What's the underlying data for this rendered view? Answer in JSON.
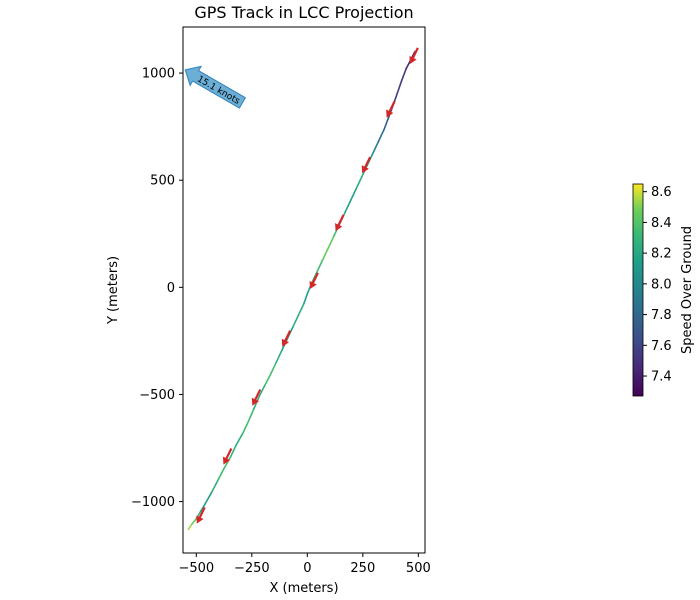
{
  "chart_data": {
    "type": "line",
    "title": "GPS Track in LCC Projection",
    "xlabel": "X (meters)",
    "ylabel": "Y (meters)",
    "xlim": [
      -560,
      530
    ],
    "ylim": [
      -1240,
      1215
    ],
    "xticks": [
      -500,
      -250,
      0,
      250,
      500
    ],
    "yticks": [
      -1000,
      -500,
      0,
      500,
      1000
    ],
    "grid": false,
    "track": {
      "x": [
        -536,
        -520,
        -500,
        -480,
        -460,
        -430,
        -400,
        -375,
        -345,
        -320,
        -290,
        -265,
        -240,
        -215,
        -190,
        -165,
        -140,
        -115,
        -90,
        -65,
        -40,
        -15,
        0,
        20,
        45,
        70,
        95,
        120,
        145,
        170,
        195,
        220,
        245,
        270,
        295,
        320,
        345,
        365,
        385,
        405,
        425,
        445,
        465,
        485
      ],
      "y": [
        -1130,
        -1105,
        -1080,
        -1045,
        -1010,
        -955,
        -895,
        -845,
        -790,
        -735,
        -680,
        -625,
        -565,
        -505,
        -455,
        -405,
        -350,
        -295,
        -240,
        -185,
        -130,
        -75,
        -30,
        20,
        75,
        130,
        185,
        240,
        295,
        350,
        405,
        460,
        515,
        570,
        625,
        680,
        735,
        790,
        845,
        905,
        965,
        1020,
        1060,
        1100
      ],
      "speed": [
        8.6,
        8.5,
        8.4,
        8.2,
        8.1,
        8.2,
        8.3,
        8.4,
        8.3,
        8.2,
        8.3,
        8.4,
        8.3,
        8.2,
        8.3,
        8.4,
        8.3,
        8.2,
        8.1,
        8.2,
        8.3,
        8.2,
        8.1,
        8.2,
        8.3,
        8.4,
        8.5,
        8.4,
        8.3,
        8.2,
        8.1,
        8.2,
        8.3,
        8.2,
        8.0,
        7.9,
        7.8,
        7.7,
        7.6,
        7.5,
        7.6,
        7.5,
        7.4,
        7.3
      ]
    },
    "arrows": {
      "x": [
        -480,
        -360,
        -230,
        -95,
        30,
        145,
        265,
        375,
        480
      ],
      "y": [
        -1065,
        -790,
        -515,
        -240,
        30,
        300,
        570,
        830,
        1080
      ],
      "direction": "down-left"
    },
    "wind_annotation": {
      "label": "15.1 knots",
      "x": -550,
      "y": 1015
    },
    "colorbar": {
      "label": "Speed Over Ground",
      "min": 7.27,
      "max": 8.65,
      "ticks": [
        7.4,
        7.6,
        7.8,
        8.0,
        8.2,
        8.4,
        8.6
      ],
      "colormap": "viridis"
    },
    "colors": {
      "arrow": "#d62728",
      "wind_fill": "#6baed6",
      "wind_stroke": "#3182bd",
      "axes": "#000000"
    }
  }
}
